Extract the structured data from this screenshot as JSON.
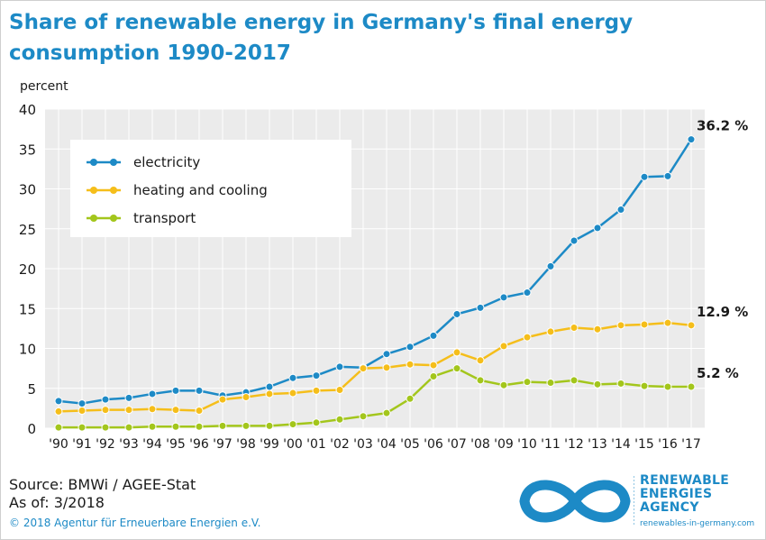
{
  "header": {
    "title_line1": "Share of renewable energy in Germany's final energy",
    "title_line2": "consumption 1990-2017"
  },
  "footer": {
    "source": "Source: BMWi / AGEE-Stat",
    "as_of": "As of: 3/2018",
    "copyright": "© 2018 Agentur für Erneuerbare Energien e.V."
  },
  "logo": {
    "line1": "RENEWABLE",
    "line2": "ENERGIES",
    "line3": "AGENCY",
    "url": "renewables-in-germany.com"
  },
  "colors": {
    "electricity": "#1d8ac6",
    "heating": "#f5be1a",
    "transport": "#a3c61c",
    "title": "#1d8ac6",
    "plot_bg": "#ebebeb"
  },
  "chart_data": {
    "type": "line",
    "title": "Share of renewable energy in Germany's final energy consumption 1990-2017",
    "ylabel": "percent",
    "ylim": [
      0,
      40
    ],
    "yticks": [
      0,
      5,
      10,
      15,
      20,
      25,
      30,
      35,
      40
    ],
    "grid": true,
    "legend_position": "top-left",
    "categories": [
      "'90",
      "'91",
      "'92",
      "'93",
      "'94",
      "'95",
      "'96",
      "'97",
      "'98",
      "'99",
      "'00",
      "'01",
      "'02",
      "'03",
      "'04",
      "'05",
      "'06",
      "'07",
      "'08",
      "'09",
      "'10",
      "'11",
      "'12",
      "'13",
      "'14",
      "'15",
      "'16",
      "'17"
    ],
    "series": [
      {
        "name": "electricity",
        "values": [
          3.4,
          3.1,
          3.6,
          3.8,
          4.3,
          4.7,
          4.7,
          4.1,
          4.5,
          5.2,
          6.3,
          6.6,
          7.7,
          7.6,
          9.3,
          10.2,
          11.6,
          14.3,
          15.1,
          16.4,
          17.0,
          20.3,
          23.5,
          25.1,
          27.4,
          31.5,
          31.6,
          36.2
        ],
        "end_label": "36.2 %"
      },
      {
        "name": "heating and cooling",
        "values": [
          2.1,
          2.2,
          2.3,
          2.3,
          2.4,
          2.3,
          2.2,
          3.6,
          3.9,
          4.3,
          4.4,
          4.7,
          4.8,
          7.5,
          7.6,
          8.0,
          7.9,
          9.5,
          8.5,
          10.3,
          11.4,
          12.1,
          12.6,
          12.4,
          12.9,
          13.0,
          13.2,
          12.9
        ],
        "end_label": "12.9 %"
      },
      {
        "name": "transport",
        "values": [
          0.1,
          0.1,
          0.1,
          0.1,
          0.2,
          0.2,
          0.2,
          0.3,
          0.3,
          0.3,
          0.5,
          0.7,
          1.1,
          1.5,
          1.9,
          3.7,
          6.5,
          7.5,
          6.0,
          5.4,
          5.8,
          5.7,
          6.0,
          5.5,
          5.6,
          5.3,
          5.2,
          5.2
        ],
        "end_label": "5.2 %"
      }
    ]
  }
}
